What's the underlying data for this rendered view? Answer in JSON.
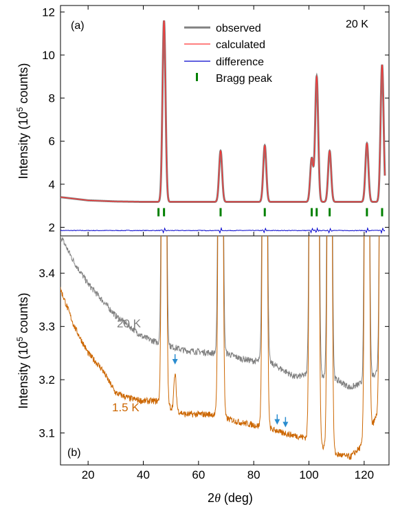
{
  "chart_data": [
    {
      "panel_label": "(a)",
      "type": "line",
      "temperature_label": "20 K",
      "ylabel_prefix": "Intensity (10",
      "ylabel_exp": "5",
      "ylabel_suffix": " counts)",
      "xlim": [
        10,
        129
      ],
      "ylim": [
        1.6,
        12.3
      ],
      "yticks": [
        2,
        4,
        6,
        8,
        10,
        12
      ],
      "legend": {
        "placement": "top-center",
        "items": [
          {
            "label": "observed",
            "color": "#808080"
          },
          {
            "label": "calculated",
            "color": "#ff3333"
          },
          {
            "label": "difference",
            "color": "#0000cc"
          },
          {
            "label": "Bragg peak",
            "color": "#008000"
          }
        ]
      },
      "baseline": [
        [
          10,
          3.4
        ],
        [
          20,
          3.25
        ],
        [
          30,
          3.2
        ],
        [
          40,
          3.18
        ],
        [
          129,
          3.18
        ]
      ],
      "peaks": [
        {
          "x": 47.5,
          "y": 11.6
        },
        {
          "x": 68.0,
          "y": 5.55
        },
        {
          "x": 84.0,
          "y": 5.8
        },
        {
          "x": 101.0,
          "y": 5.2
        },
        {
          "x": 102.8,
          "y": 9.0
        },
        {
          "x": 107.5,
          "y": 5.55
        },
        {
          "x": 121.0,
          "y": 5.9
        },
        {
          "x": 126.5,
          "y": 9.55
        }
      ],
      "bragg_peaks_x": [
        45.5,
        47.5,
        68.0,
        84.0,
        101.0,
        102.8,
        107.5,
        121.0,
        126.5
      ],
      "bragg_y": 2.7,
      "difference_level": 1.85
    },
    {
      "panel_label": "(b)",
      "type": "line",
      "xlabel_prefix": "2",
      "xlabel_theta": "θ",
      "xlabel_suffix": " (deg)",
      "ylabel_prefix": "Intensity (10",
      "ylabel_exp": "5",
      "ylabel_suffix": " counts)",
      "xlim": [
        10,
        129
      ],
      "ylim": [
        3.04,
        3.47
      ],
      "xticks": [
        20,
        40,
        60,
        80,
        100,
        120
      ],
      "yticks": [
        3.1,
        3.2,
        3.3,
        3.4
      ],
      "series": [
        {
          "name": "20 K",
          "color": "#808080",
          "background": [
            [
              10,
              3.47
            ],
            [
              15,
              3.42
            ],
            [
              20,
              3.38
            ],
            [
              25,
              3.35
            ],
            [
              30,
              3.32
            ],
            [
              35,
              3.3
            ],
            [
              40,
              3.28
            ],
            [
              45,
              3.27
            ],
            [
              55,
              3.255
            ],
            [
              65,
              3.25
            ],
            [
              70,
              3.25
            ],
            [
              75,
              3.24
            ],
            [
              80,
              3.235
            ],
            [
              85,
              3.235
            ],
            [
              90,
              3.22
            ],
            [
              95,
              3.205
            ],
            [
              100,
              3.21
            ],
            [
              110,
              3.2
            ],
            [
              115,
              3.185
            ],
            [
              120,
              3.195
            ],
            [
              126,
              3.22
            ],
            [
              129,
              3.25
            ]
          ],
          "blips": []
        },
        {
          "name": "1.5 K",
          "color": "#cc6600",
          "background": [
            [
              10,
              3.37
            ],
            [
              15,
              3.3
            ],
            [
              20,
              3.25
            ],
            [
              25,
              3.22
            ],
            [
              30,
              3.175
            ],
            [
              35,
              3.165
            ],
            [
              40,
              3.16
            ],
            [
              45,
              3.16
            ],
            [
              55,
              3.135
            ],
            [
              65,
              3.135
            ],
            [
              75,
              3.12
            ],
            [
              80,
              3.115
            ],
            [
              85,
              3.11
            ],
            [
              90,
              3.1
            ],
            [
              95,
              3.095
            ],
            [
              100,
              3.09
            ],
            [
              110,
              3.06
            ],
            [
              115,
              3.055
            ],
            [
              120,
              3.08
            ],
            [
              126,
              3.15
            ],
            [
              129,
              3.2
            ]
          ],
          "blips": [
            {
              "x": 51.5,
              "y": 3.21
            },
            {
              "x": 88.5,
              "y": 3.105
            },
            {
              "x": 91.5,
              "y": 3.1
            }
          ]
        }
      ],
      "peak_positions": [
        47.5,
        68.0,
        84.0,
        101.0,
        102.8,
        107.5,
        121.0,
        126.5
      ],
      "arrows": [
        {
          "x": 51.5,
          "y": 3.235
        },
        {
          "x": 88.5,
          "y": 3.122
        },
        {
          "x": 91.5,
          "y": 3.117
        }
      ],
      "arrow_color": "#2a8ccf",
      "panel_tag": "(b)"
    }
  ]
}
